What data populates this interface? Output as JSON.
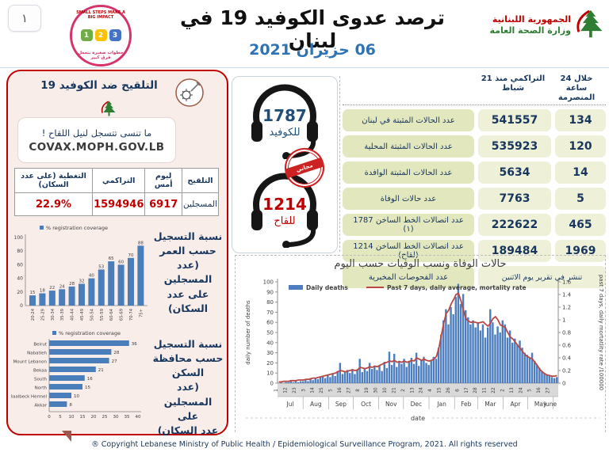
{
  "page": {
    "number": "١"
  },
  "header": {
    "title": "ترصد عدوى الكوفيد 19 في لبنان",
    "date": "06 حزيران 2021",
    "moph_logo": {
      "line1": "الجمهورية اللبنانية",
      "line2": "وزارة الصحة العامة",
      "icon": "cedar-icon"
    },
    "campaign_logo": {
      "top_text": "SMALL STEPS MAKE A BIG IMPACT",
      "bottom_text": "خطوات صغيرة بتعمل فرق كبير",
      "steps": [
        "1",
        "2",
        "3"
      ],
      "step_colors": [
        "#70ad47",
        "#ffc000",
        "#4472c4"
      ]
    }
  },
  "vaccination_panel": {
    "title": "التلقيح ضد الكوفيد 19",
    "note_line1": "ما تنسى تتسجل لنيل اللقاح !",
    "note_line2": "COVAX.MOPH.GOV.LB",
    "table": {
      "headers": [
        "التلقيح",
        "ليوم أمس",
        "التراكمي",
        "التغطية (على عدد السكان)"
      ],
      "row_label": "المسجلين",
      "yesterday": "6917",
      "cumulative": "1594946",
      "coverage": "22.9%"
    },
    "age_chart_label": "نسبة التسجيل\nحسب العمر\n(عدد المسجلين\nعلى عدد\nالسكان)",
    "gov_chart_label": "نسبة التسجيل\nحسب محافظة\nالسكن\n(عدد المسجلين على\nعدد السكان)"
  },
  "hotlines": {
    "covid": {
      "number": "1787",
      "label": "للكوفيد",
      "color": "#1f4e79"
    },
    "vaccine": {
      "number": "1214",
      "label": "للقاح",
      "color": "#c00000"
    },
    "stamp_text": "مجاني"
  },
  "stats_table": {
    "col_24h": "خلال 24 ساعة المنصرمة",
    "col_cum": "التراكمي منذ 21 شباط",
    "rows": [
      {
        "label": "عدد الحالات المثبتة في لبنان",
        "h24": "134",
        "cum": "541557"
      },
      {
        "label": "عدد الحالات المثبتة المحلية",
        "h24": "120",
        "cum": "535923"
      },
      {
        "label": "عدد الحالات المثبتة الوافدة",
        "h24": "14",
        "cum": "5634"
      },
      {
        "label": "عدد حالات الوفاة",
        "h24": "5",
        "cum": "7763"
      },
      {
        "label": "عدد اتصالات الخط الساخن 1787 (١)",
        "h24": "465",
        "cum": "222622"
      },
      {
        "label": "عدد اتصالات الخط الساخن 1214 (لقاح)",
        "h24": "1969",
        "cum": "189484"
      }
    ],
    "last_row": {
      "label": "عدد الفحوصات المخبرية",
      "value": "تنشر في تقرير يوم الاثنين"
    }
  },
  "footer": "® Copyright Lebanese Ministry of Public Health / Epidemiological Surveillance Program, 2021. All rights reserved",
  "chart_data": [
    {
      "type": "bar",
      "title": "",
      "legend": "% registration coverage",
      "categories": [
        "20-24",
        "25-29",
        "30-34",
        "35-39",
        "40-44",
        "45-49",
        "50-54",
        "55-59",
        "60-64",
        "65-69",
        "70-74",
        "75+"
      ],
      "values": [
        15,
        18,
        22,
        24,
        28,
        32,
        40,
        53,
        65,
        60,
        70,
        88
      ],
      "ylim": [
        0,
        100
      ],
      "yticks": [
        0,
        20,
        40,
        60,
        80,
        100
      ],
      "bar_color": "#4a7ebb"
    },
    {
      "type": "bar",
      "orientation": "horizontal",
      "legend": "% registration coverage",
      "categories": [
        "Beirut",
        "Nabatieh",
        "Mount Lebanon",
        "Bekaa",
        "South",
        "North",
        "Baalbeck Hermel",
        "Akkar"
      ],
      "values": [
        36,
        28,
        27,
        21,
        16,
        15,
        10,
        8
      ],
      "xlim": [
        0,
        40
      ],
      "xticks": [
        0,
        5,
        10,
        15,
        20,
        25,
        30,
        35,
        40
      ],
      "bar_color": "#4a7ebb"
    },
    {
      "type": "bar+line",
      "title": "حالات الوفاة ونسب الوفيات حسب اليوم",
      "xlabel": "date",
      "ylabel_left": "daily number of deaths",
      "ylabel_right": "past 7 days, daily mortatlity rate /100000",
      "ylim_left": [
        0,
        100
      ],
      "yticks_left": [
        0,
        10,
        20,
        30,
        40,
        50,
        60,
        70,
        80,
        90,
        100
      ],
      "ylim_right": [
        0,
        1.6
      ],
      "yticks_right": [
        0,
        0.2,
        0.4,
        0.6,
        0.8,
        1,
        1.2,
        1.4,
        1.6
      ],
      "legend": [
        "Daily deaths",
        "Past 7 days, daily average, mortality rate"
      ],
      "months": [
        [
          "Jul",
          31
        ],
        [
          "Aug",
          31
        ],
        [
          "Sep",
          30
        ],
        [
          "Oct",
          31
        ],
        [
          "Nov",
          30
        ],
        [
          "Dec",
          31
        ],
        [
          "Jan",
          31
        ],
        [
          "Feb",
          28
        ],
        [
          "Mar",
          31
        ],
        [
          "Apr",
          30
        ],
        [
          "May",
          31
        ],
        [
          "June",
          6
        ]
      ],
      "day_tick_positions": [
        1,
        12,
        23,
        34,
        45,
        56,
        67,
        78,
        89,
        100,
        111,
        122,
        133,
        144,
        155,
        166,
        177,
        188,
        199,
        210,
        221,
        232,
        243,
        254,
        265,
        276,
        287,
        298,
        309,
        320,
        331
      ],
      "day_tick_labels": [
        "1",
        "12",
        "23",
        "3",
        "14",
        "25",
        "5",
        "16",
        "27",
        "8",
        "19",
        "30",
        "10",
        "21",
        "2",
        "13",
        "24",
        "4",
        "15",
        "26",
        "6",
        "17",
        "28",
        "11",
        "22",
        "2",
        "13",
        "24",
        "5",
        "16",
        "27"
      ],
      "sample_step_days": 3,
      "total_days": 341,
      "series": [
        {
          "name": "Daily deaths",
          "type": "bar",
          "color": "#4d7ebf",
          "values": [
            0,
            1,
            0,
            1,
            1,
            2,
            1,
            2,
            1,
            2,
            2,
            3,
            2,
            4,
            3,
            5,
            4,
            6,
            7,
            5,
            8,
            6,
            9,
            7,
            12,
            20,
            9,
            11,
            13,
            10,
            14,
            9,
            13,
            24,
            11,
            15,
            12,
            20,
            14,
            16,
            13,
            17,
            12,
            21,
            15,
            31,
            18,
            29,
            16,
            22,
            19,
            24,
            16,
            22,
            25,
            19,
            30,
            17,
            23,
            26,
            20,
            18,
            22,
            26,
            24,
            35,
            48,
            62,
            73,
            58,
            75,
            68,
            85,
            98,
            78,
            88,
            72,
            65,
            58,
            62,
            55,
            60,
            52,
            58,
            45,
            55,
            73,
            60,
            48,
            56,
            50,
            62,
            58,
            45,
            52,
            40,
            44,
            38,
            42,
            35,
            30,
            28,
            25,
            30,
            22,
            18,
            15,
            12,
            10,
            8,
            7,
            6,
            5,
            6
          ]
        },
        {
          "name": "Past 7 days, daily average, mortality rate",
          "type": "line",
          "color": "#b94743",
          "axis": "right",
          "values": [
            0.02,
            0.02,
            0.03,
            0.03,
            0.03,
            0.04,
            0.04,
            0.04,
            0.05,
            0.05,
            0.05,
            0.06,
            0.06,
            0.07,
            0.08,
            0.08,
            0.09,
            0.1,
            0.11,
            0.12,
            0.13,
            0.14,
            0.15,
            0.16,
            0.18,
            0.2,
            0.19,
            0.18,
            0.19,
            0.2,
            0.21,
            0.2,
            0.21,
            0.25,
            0.24,
            0.23,
            0.24,
            0.26,
            0.25,
            0.27,
            0.26,
            0.28,
            0.3,
            0.32,
            0.33,
            0.35,
            0.34,
            0.36,
            0.33,
            0.34,
            0.33,
            0.35,
            0.33,
            0.34,
            0.36,
            0.35,
            0.4,
            0.38,
            0.36,
            0.38,
            0.36,
            0.35,
            0.36,
            0.38,
            0.42,
            0.55,
            0.75,
            0.95,
            1.1,
            1.15,
            1.25,
            1.32,
            1.4,
            1.42,
            1.3,
            1.15,
            1.02,
            0.98,
            0.96,
            0.97,
            0.96,
            0.95,
            0.96,
            0.97,
            0.93,
            0.9,
            0.95,
            1.02,
            1.05,
            1.0,
            0.92,
            0.9,
            0.88,
            0.8,
            0.73,
            0.7,
            0.65,
            0.6,
            0.55,
            0.5,
            0.45,
            0.42,
            0.4,
            0.38,
            0.33,
            0.28,
            0.22,
            0.18,
            0.15,
            0.13,
            0.12,
            0.11,
            0.11,
            0.12
          ]
        }
      ]
    }
  ]
}
